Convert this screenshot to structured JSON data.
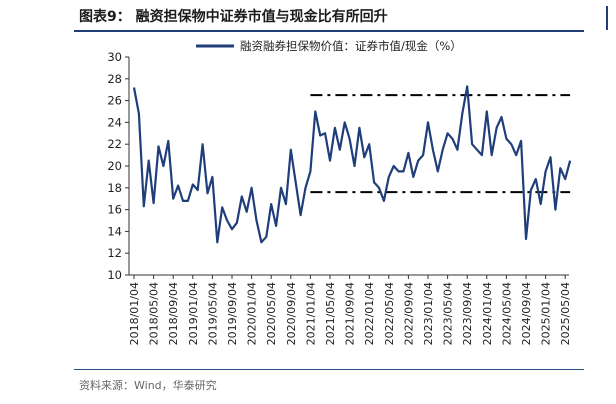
{
  "header": {
    "title": "图表9：  融资担保物中证券市值与现金比有所回升"
  },
  "footer": {
    "source": "资料来源：Wind，华泰研究"
  },
  "colors": {
    "series": "#1f3e7a",
    "rule": "#1f3e7a",
    "reference": "#000000"
  },
  "chart_data": {
    "type": "line",
    "title": "",
    "xlabel": "",
    "ylabel": "",
    "ylim": [
      10,
      30
    ],
    "yticks": [
      10,
      12,
      14,
      16,
      18,
      20,
      22,
      24,
      26,
      28,
      30
    ],
    "grid": false,
    "legend": "top",
    "x_tick_labels": [
      "2018/01/04",
      "2018/05/04",
      "2018/09/04",
      "2019/01/04",
      "2019/05/04",
      "2019/09/04",
      "2020/01/04",
      "2020/05/04",
      "2020/09/04",
      "2021/01/04",
      "2021/05/04",
      "2021/09/04",
      "2022/01/04",
      "2022/05/04",
      "2022/09/04",
      "2023/01/04",
      "2023/05/04",
      "2023/09/04",
      "2024/01/04",
      "2024/05/04",
      "2024/09/04",
      "2025/01/04",
      "2025/05/04"
    ],
    "series": [
      {
        "name": "融资融券担保物价值：证券市值/现金（%）",
        "x": [
          "2018/01",
          "2018/02",
          "2018/03",
          "2018/04",
          "2018/05",
          "2018/06",
          "2018/07",
          "2018/08",
          "2018/09",
          "2018/10",
          "2018/11",
          "2018/12",
          "2019/01",
          "2019/02",
          "2019/03",
          "2019/04",
          "2019/05",
          "2019/06",
          "2019/07",
          "2019/08",
          "2019/09",
          "2019/10",
          "2019/11",
          "2019/12",
          "2020/01",
          "2020/02",
          "2020/03",
          "2020/04",
          "2020/05",
          "2020/06",
          "2020/07",
          "2020/08",
          "2020/09",
          "2020/10",
          "2020/11",
          "2020/12",
          "2021/01",
          "2021/02",
          "2021/03",
          "2021/04",
          "2021/05",
          "2021/06",
          "2021/07",
          "2021/08",
          "2021/09",
          "2021/10",
          "2021/11",
          "2021/12",
          "2022/01",
          "2022/02",
          "2022/03",
          "2022/04",
          "2022/05",
          "2022/06",
          "2022/07",
          "2022/08",
          "2022/09",
          "2022/10",
          "2022/11",
          "2022/12",
          "2023/01",
          "2023/02",
          "2023/03",
          "2023/04",
          "2023/05",
          "2023/06",
          "2023/07",
          "2023/08",
          "2023/09",
          "2023/10",
          "2023/11",
          "2023/12",
          "2024/01",
          "2024/02",
          "2024/03",
          "2024/04",
          "2024/05",
          "2024/06",
          "2024/07",
          "2024/08",
          "2024/09",
          "2024/10",
          "2024/11",
          "2024/12",
          "2025/01",
          "2025/02",
          "2025/03",
          "2025/04",
          "2025/05",
          "2025/06"
        ],
        "values": [
          27.2,
          24.8,
          16.3,
          20.5,
          16.6,
          21.8,
          20.0,
          22.3,
          17.0,
          18.2,
          16.8,
          16.8,
          18.3,
          17.8,
          22.0,
          17.5,
          19.0,
          13.0,
          16.2,
          15.0,
          14.2,
          14.8,
          17.2,
          15.8,
          18.0,
          15.0,
          13.0,
          13.5,
          16.5,
          14.5,
          18.0,
          16.5,
          21.5,
          18.5,
          15.5,
          18.0,
          19.5,
          25.0,
          22.8,
          23.0,
          20.5,
          23.5,
          21.5,
          24.0,
          22.5,
          20.0,
          23.5,
          20.8,
          22.0,
          18.5,
          18.0,
          16.8,
          19.0,
          20.0,
          19.5,
          19.5,
          21.2,
          19.0,
          20.5,
          21.0,
          24.0,
          21.5,
          19.5,
          21.5,
          23.0,
          22.5,
          21.5,
          24.8,
          27.3,
          22.0,
          21.5,
          21.0,
          25.0,
          21.0,
          23.5,
          24.5,
          22.5,
          22.0,
          21.0,
          22.3,
          13.3,
          17.8,
          18.8,
          16.5,
          19.5,
          20.8,
          16.0,
          19.8,
          18.8,
          20.5
        ]
      }
    ],
    "reference_lines": [
      {
        "value": 26.5,
        "from": "2021/01",
        "to": "2025/06",
        "style": "dash-dot"
      },
      {
        "value": 17.6,
        "from": "2021/01",
        "to": "2025/06",
        "style": "dash-dot"
      }
    ]
  }
}
